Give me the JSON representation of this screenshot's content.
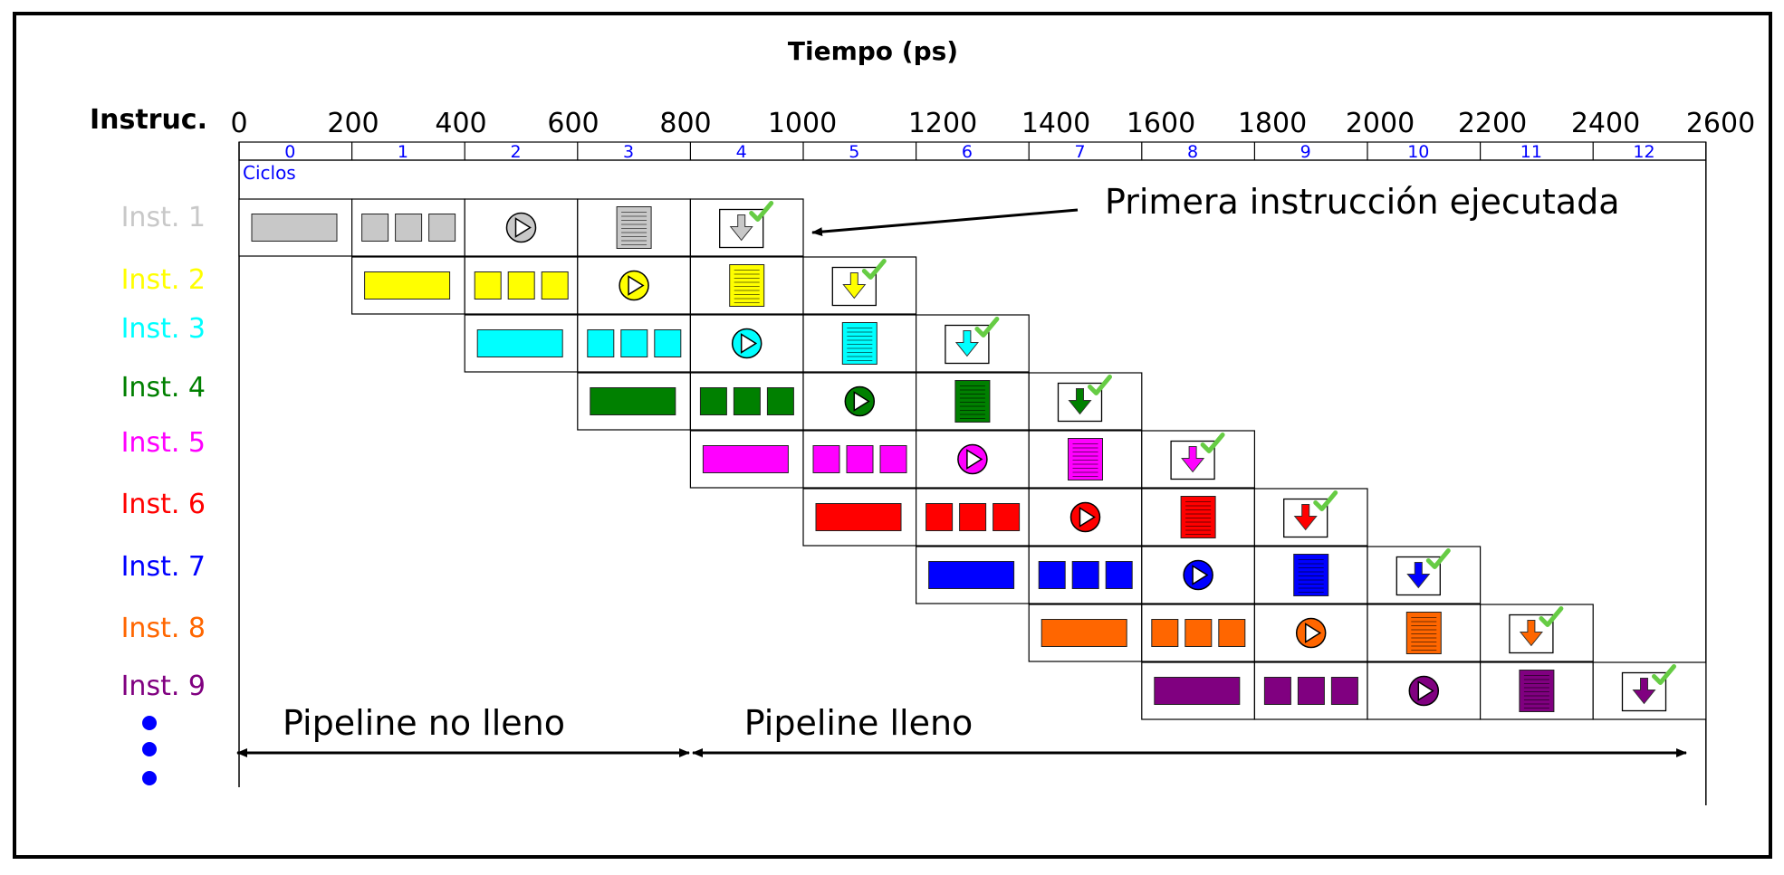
{
  "title": "Tiempo (ps)",
  "row_header": "Instruc.",
  "cycles_label": "Ciclos",
  "time_ticks": [
    "0",
    "200",
    "400",
    "600",
    "800",
    "1000",
    "1200",
    "1400",
    "1600",
    "1800",
    "2000",
    "2200",
    "2400",
    "2600"
  ],
  "cycle_numbers": [
    "0",
    "1",
    "2",
    "3",
    "4",
    "5",
    "6",
    "7",
    "8",
    "9",
    "10",
    "11",
    "12"
  ],
  "instructions": [
    {
      "label": "Inst. 1",
      "color": "#c8c8c8",
      "start_cycle": 0
    },
    {
      "label": "Inst. 2",
      "color": "#ffff00",
      "start_cycle": 1
    },
    {
      "label": "Inst. 3",
      "color": "#00ffff",
      "start_cycle": 2
    },
    {
      "label": "Inst. 4",
      "color": "#008000",
      "start_cycle": 3
    },
    {
      "label": "Inst. 5",
      "color": "#ff00ff",
      "start_cycle": 4
    },
    {
      "label": "Inst. 6",
      "color": "#ff0000",
      "start_cycle": 5
    },
    {
      "label": "Inst. 7",
      "color": "#0000ff",
      "start_cycle": 6
    },
    {
      "label": "Inst. 8",
      "color": "#ff6600",
      "start_cycle": 7
    },
    {
      "label": "Inst. 9",
      "color": "#800080",
      "start_cycle": 8
    }
  ],
  "stage_icons": [
    "fetch-bar-icon",
    "decode-squares-icon",
    "execute-play-icon",
    "memory-document-icon",
    "writeback-arrow-check-icon"
  ],
  "annotation": "Primera instrucción ejecutada",
  "phase_not_full": "Pipeline no lleno",
  "phase_full": "Pipeline lleno",
  "axis_color": "#0000ff",
  "check_color": "#66cc44"
}
